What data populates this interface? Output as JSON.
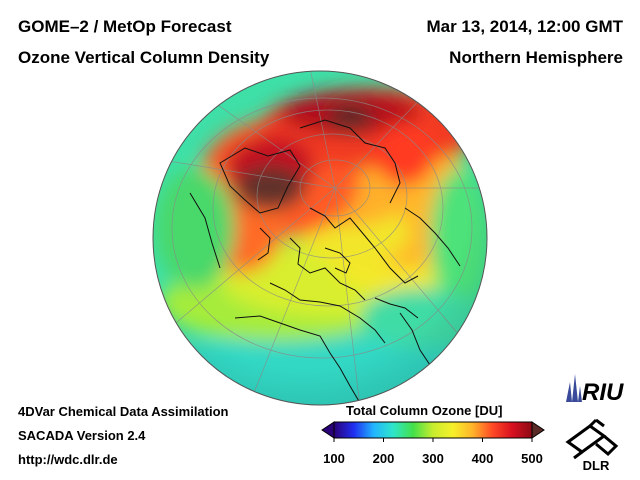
{
  "header": {
    "title_left": "GOME–2 / MetOp Forecast",
    "subtitle_left": "Ozone Vertical Column Density",
    "title_right": "Mar 13, 2014, 12:00 GMT",
    "subtitle_right": "Northern Hemisphere"
  },
  "footer": {
    "line1": "4DVar Chemical Data Assimilation",
    "line2": "SACADA Version 2.4",
    "line3": "http://wdc.dlr.de"
  },
  "colorbar": {
    "title": "Total Column Ozone [DU]",
    "ticks": [
      "100",
      "200",
      "300",
      "400",
      "500"
    ],
    "min": 100,
    "max": 500,
    "colors": [
      "#2a0078",
      "#1f2ff0",
      "#22b4ff",
      "#2ee6c8",
      "#44e04a",
      "#c8ec2e",
      "#f6f02a",
      "#ffb42a",
      "#ff4a26",
      "#d81020",
      "#8c0a14"
    ]
  },
  "logos": {
    "riu": "RIU",
    "dlr": "DLR"
  }
}
